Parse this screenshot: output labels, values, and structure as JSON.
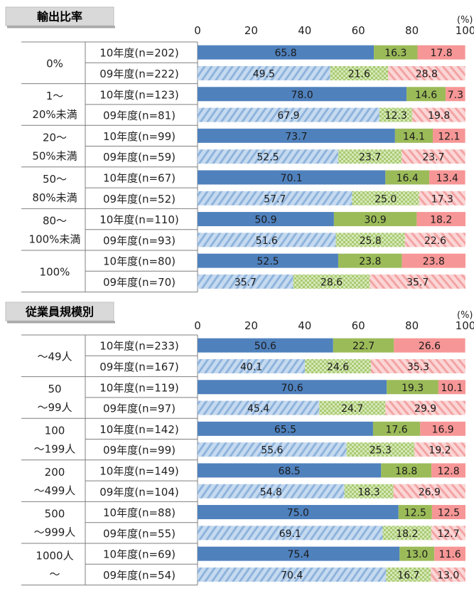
{
  "colors": {
    "seg10": [
      "#4f81bd",
      "#9bbb59",
      "#f79696"
    ],
    "seg09": [
      "#b8cfe8",
      "#c7dea0",
      "#f8c8c8"
    ],
    "header_box": "#d9d9d9"
  },
  "chart_data": [
    {
      "type": "bar",
      "orientation": "horizontal",
      "stacked": true,
      "title": "輸出比率",
      "unit_label": "(%)",
      "xlim": [
        0,
        100
      ],
      "xticks": [
        0,
        20,
        40,
        60,
        80,
        100
      ],
      "groups": [
        {
          "label": [
            "0%"
          ],
          "rows": [
            {
              "label": "10年度(n=202)",
              "year": "10",
              "values": [
                65.8,
                16.3,
                17.8
              ]
            },
            {
              "label": "09年度(n=222)",
              "year": "09",
              "values": [
                49.5,
                21.6,
                28.8
              ]
            }
          ]
        },
        {
          "label": [
            "1～",
            "20%未満"
          ],
          "rows": [
            {
              "label": "10年度(n=123)",
              "year": "10",
              "values": [
                78.0,
                14.6,
                7.3
              ]
            },
            {
              "label": "09年度(n=81)",
              "year": "09",
              "values": [
                67.9,
                12.3,
                19.8
              ]
            }
          ]
        },
        {
          "label": [
            "20～",
            "50%未満"
          ],
          "rows": [
            {
              "label": "10年度(n=99)",
              "year": "10",
              "values": [
                73.7,
                14.1,
                12.1
              ]
            },
            {
              "label": "09年度(n=59)",
              "year": "09",
              "values": [
                52.5,
                23.7,
                23.7
              ]
            }
          ]
        },
        {
          "label": [
            "50～",
            "80%未満"
          ],
          "rows": [
            {
              "label": "10年度(n=67)",
              "year": "10",
              "values": [
                70.1,
                16.4,
                13.4
              ]
            },
            {
              "label": "09年度(n=52)",
              "year": "09",
              "values": [
                57.7,
                25.0,
                17.3
              ]
            }
          ]
        },
        {
          "label": [
            "80～",
            "100%未満"
          ],
          "rows": [
            {
              "label": "10年度(n=110)",
              "year": "10",
              "values": [
                50.9,
                30.9,
                18.2
              ]
            },
            {
              "label": "09年度(n=93)",
              "year": "09",
              "values": [
                51.6,
                25.8,
                22.6
              ]
            }
          ]
        },
        {
          "label": [
            "100%"
          ],
          "rows": [
            {
              "label": "10年度(n=80)",
              "year": "10",
              "values": [
                52.5,
                23.8,
                23.8
              ]
            },
            {
              "label": "09年度(n=70)",
              "year": "09",
              "values": [
                35.7,
                28.6,
                35.7
              ]
            }
          ]
        }
      ]
    },
    {
      "type": "bar",
      "orientation": "horizontal",
      "stacked": true,
      "title": "従業員規模別",
      "unit_label": "(%)",
      "xlim": [
        0,
        100
      ],
      "xticks": [
        0,
        20,
        40,
        60,
        80,
        100
      ],
      "groups": [
        {
          "label": [
            "～49人"
          ],
          "rows": [
            {
              "label": "10年度(n=233)",
              "year": "10",
              "values": [
                50.6,
                22.7,
                26.6
              ]
            },
            {
              "label": "09年度(n=167)",
              "year": "09",
              "values": [
                40.1,
                24.6,
                35.3
              ]
            }
          ]
        },
        {
          "label": [
            "50",
            "～99人"
          ],
          "rows": [
            {
              "label": "10年度(n=119)",
              "year": "10",
              "values": [
                70.6,
                19.3,
                10.1
              ]
            },
            {
              "label": "09年度(n=97)",
              "year": "09",
              "values": [
                45.4,
                24.7,
                29.9
              ]
            }
          ]
        },
        {
          "label": [
            "100",
            "～199人"
          ],
          "rows": [
            {
              "label": "10年度(n=142)",
              "year": "10",
              "values": [
                65.5,
                17.6,
                16.9
              ]
            },
            {
              "label": "09年度(n=99)",
              "year": "09",
              "values": [
                55.6,
                25.3,
                19.2
              ]
            }
          ]
        },
        {
          "label": [
            "200",
            "～499人"
          ],
          "rows": [
            {
              "label": "10年度(n=149)",
              "year": "10",
              "values": [
                68.5,
                18.8,
                12.8
              ]
            },
            {
              "label": "09年度(n=104)",
              "year": "09",
              "values": [
                54.8,
                18.3,
                26.9
              ]
            }
          ]
        },
        {
          "label": [
            "500",
            "～999人"
          ],
          "rows": [
            {
              "label": "10年度(n=88)",
              "year": "10",
              "values": [
                75.0,
                12.5,
                12.5
              ]
            },
            {
              "label": "09年度(n=55)",
              "year": "09",
              "values": [
                69.1,
                18.2,
                12.7
              ]
            }
          ]
        },
        {
          "label": [
            "1000人",
            "～"
          ],
          "rows": [
            {
              "label": "10年度(n=69)",
              "year": "10",
              "values": [
                75.4,
                13.0,
                11.6
              ]
            },
            {
              "label": "09年度(n=54)",
              "year": "09",
              "values": [
                70.4,
                16.7,
                13.0
              ]
            }
          ]
        }
      ]
    }
  ]
}
